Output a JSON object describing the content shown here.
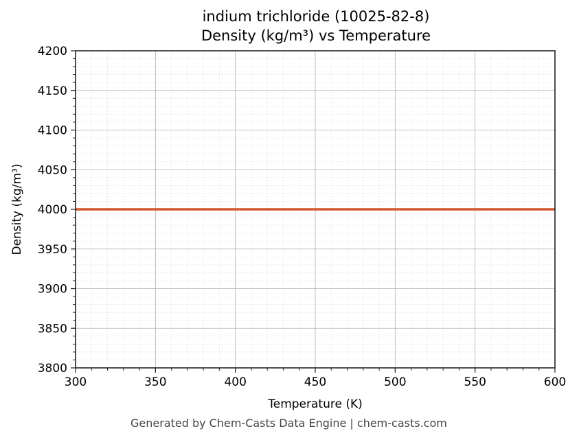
{
  "chart_data": {
    "type": "line",
    "title": "indium trichloride (10025-82-8)",
    "subtitle": "Density (kg/m³) vs Temperature",
    "xlabel": "Temperature (K)",
    "ylabel": "Density (kg/m³)",
    "xlim": [
      300,
      600
    ],
    "ylim": [
      3800,
      4200
    ],
    "xticks": [
      300,
      350,
      400,
      450,
      500,
      550,
      600
    ],
    "yticks": [
      3800,
      3850,
      3900,
      3950,
      4000,
      4050,
      4100,
      4150,
      4200
    ],
    "grid": true,
    "minor_grid": true,
    "legend": null,
    "series": [
      {
        "name": "Density",
        "color": "#d2562a",
        "x": [
          300,
          600
        ],
        "values": [
          4000,
          4000
        ]
      }
    ]
  },
  "footer": "Generated by Chem-Casts Data Engine | chem-casts.com"
}
